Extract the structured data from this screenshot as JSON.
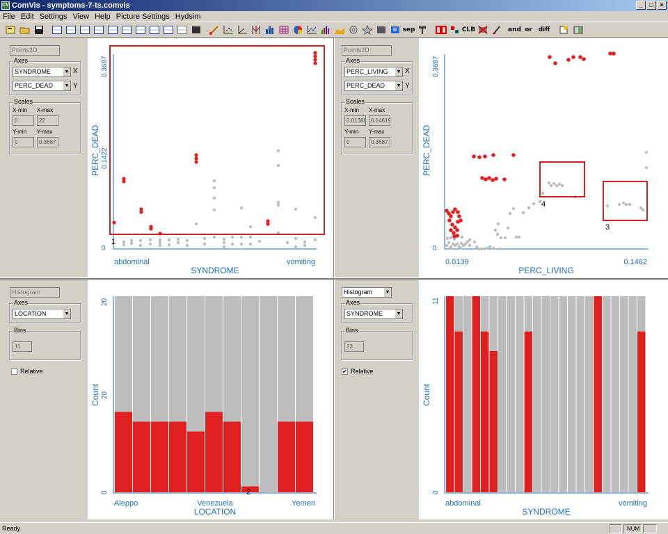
{
  "window": {
    "title": "ComVis - symptoms-7-ts.comvis",
    "minimize": "_",
    "maximize": "□",
    "close": "×"
  },
  "menu": [
    "File",
    "Edit",
    "Settings",
    "View",
    "Help",
    "Picture Settings",
    "Hydsim"
  ],
  "toolbar": {
    "text_buttons": [
      "sep",
      "CLB",
      "and",
      "or",
      "diff"
    ]
  },
  "panes": {
    "tl": {
      "view_type": "Points2D",
      "axes_label": "Axes",
      "x_field": "SYNDROME",
      "x_tag": "X",
      "y_field": "PERC_DEAD",
      "y_tag": "Y",
      "scales_label": "Scales",
      "xmin_label": "X-min",
      "xmax_label": "X-max",
      "ymin_label": "Y-min",
      "ymax_label": "Y-max",
      "xmin": "0",
      "xmax": "22",
      "ymin": "0",
      "ymax": "0.3687",
      "y_axis_title": "PERC_DEAD",
      "y_top": "0.3687",
      "y_mid": "0.1422",
      "y_zero": "0",
      "x_axis_title": "SYNDROME",
      "x_left": "abdominal",
      "x_right": "vomiting",
      "selection_marker": "1"
    },
    "tr": {
      "view_type": "Points2D",
      "axes_label": "Axes",
      "x_field": "PERC_LIVING",
      "x_tag": "X",
      "y_field": "PERC_DEAD",
      "y_tag": "Y",
      "scales_label": "Scales",
      "xmin_label": "X-min",
      "xmax_label": "X-max",
      "ymin_label": "Y-min",
      "ymax_label": "Y-max",
      "xmin": "0.01388",
      "xmax": "0.14619",
      "ymin": "0",
      "ymax": "0.3687",
      "y_axis_title": "PERC_DEAD",
      "y_top": "0.3687",
      "y_zero": "0",
      "x_axis_title": "PERC_LIVING",
      "x_left": "0.0139",
      "x_right": "0.1462",
      "selection_marker_a": "4",
      "selection_marker_b": "3"
    },
    "bl": {
      "view_type": "Histogram",
      "axes_label": "Axes",
      "field": "LOCATION",
      "bins_label": "Bins",
      "bins": "11",
      "relative_label": "Relative",
      "relative_checked": "",
      "y_axis_title": "Count",
      "y_top": "20",
      "y_mid": "20",
      "y_zero": "0",
      "x_axis_title": "LOCATION",
      "x_left": "Aleppo",
      "x_mid": "Venezuela",
      "x_right": "Yemen",
      "selection_marker": "2"
    },
    "br": {
      "view_type": "Histogram",
      "axes_label": "Axes",
      "field": "SYNDROME",
      "bins_label": "Bins",
      "bins": "23",
      "relative_label": "Relative",
      "relative_checked": "✔",
      "y_axis_title": "Count",
      "y_top": "11",
      "y_zero": "0",
      "x_axis_title": "SYNDROME",
      "x_left": "abdominal",
      "x_right": "vomiting"
    }
  },
  "histograms": {
    "location_selected_fraction": [
      0.41,
      0.36,
      0.36,
      0.36,
      0.31,
      0.41,
      0.36,
      0.03,
      0.0,
      0.36,
      0.36
    ],
    "syndrome_selected_fraction": [
      1,
      0.82,
      0,
      1,
      0.82,
      0.72,
      0,
      0,
      0,
      0.82,
      0,
      0,
      0,
      0,
      0,
      0,
      0,
      1,
      0,
      0,
      0,
      0,
      0.82
    ]
  },
  "colors": {
    "selected": "#e02020",
    "unselected": "#bdbdbd",
    "axis": "#1f6fb7"
  },
  "status": {
    "text": "Ready",
    "num": "NUM"
  }
}
